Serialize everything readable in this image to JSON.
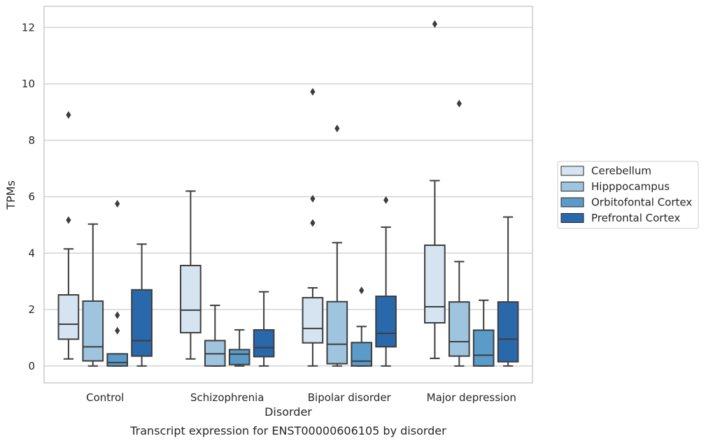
{
  "chart_data": {
    "type": "box",
    "caption": "Transcript expression for ENST00000606105 by disorder",
    "xlabel": "Disorder",
    "ylabel": "TPMs",
    "ylim": [
      -0.6,
      12.75
    ],
    "yticks": [
      0,
      2,
      4,
      6,
      8,
      10,
      12
    ],
    "grid": "horizontal",
    "legend_position": "right",
    "categories": [
      "Control",
      "Schizophrenia",
      "Bipolar disorder",
      "Major depression"
    ],
    "series": [
      {
        "name": "Cerebellum",
        "color": "#d6e4f2",
        "boxes": [
          {
            "whisker_low": 0.25,
            "q1": 0.95,
            "median": 1.48,
            "q3": 2.52,
            "whisker_high": 4.15,
            "outliers": [
              5.17,
              8.9
            ]
          },
          {
            "whisker_low": 0.25,
            "q1": 1.18,
            "median": 1.98,
            "q3": 3.56,
            "whisker_high": 6.2,
            "outliers": []
          },
          {
            "whisker_low": 0.0,
            "q1": 0.82,
            "median": 1.33,
            "q3": 2.42,
            "whisker_high": 2.77,
            "outliers": [
              5.07,
              5.93,
              9.72
            ]
          },
          {
            "whisker_low": 0.27,
            "q1": 1.53,
            "median": 2.1,
            "q3": 4.28,
            "whisker_high": 6.57,
            "outliers": [
              12.12
            ]
          }
        ]
      },
      {
        "name": "Hipppocampus",
        "color": "#9ec4de",
        "boxes": [
          {
            "whisker_low": 0.0,
            "q1": 0.18,
            "median": 0.68,
            "q3": 2.3,
            "whisker_high": 5.03,
            "outliers": []
          },
          {
            "whisker_low": 0.0,
            "q1": 0.0,
            "median": 0.43,
            "q3": 0.9,
            "whisker_high": 2.15,
            "outliers": []
          },
          {
            "whisker_low": 0.0,
            "q1": 0.08,
            "median": 0.77,
            "q3": 2.28,
            "whisker_high": 4.37,
            "outliers": [
              8.42
            ]
          },
          {
            "whisker_low": 0.0,
            "q1": 0.35,
            "median": 0.86,
            "q3": 2.27,
            "whisker_high": 3.7,
            "outliers": [
              9.3
            ]
          }
        ]
      },
      {
        "name": "Orbitofontal Cortex",
        "color": "#5a9bc9",
        "boxes": [
          {
            "whisker_low": 0.0,
            "q1": 0.0,
            "median": 0.12,
            "q3": 0.43,
            "whisker_high": 0.43,
            "outliers": [
              1.25,
              1.8,
              5.75
            ]
          },
          {
            "whisker_low": 0.0,
            "q1": 0.05,
            "median": 0.42,
            "q3": 0.58,
            "whisker_high": 1.28,
            "outliers": []
          },
          {
            "whisker_low": 0.0,
            "q1": 0.0,
            "median": 0.17,
            "q3": 0.83,
            "whisker_high": 1.4,
            "outliers": [
              2.68
            ]
          },
          {
            "whisker_low": 0.0,
            "q1": 0.0,
            "median": 0.38,
            "q3": 1.27,
            "whisker_high": 2.33,
            "outliers": []
          }
        ]
      },
      {
        "name": "Prefrontal Cortex",
        "color": "#2a68ac",
        "boxes": [
          {
            "whisker_low": 0.0,
            "q1": 0.35,
            "median": 0.9,
            "q3": 2.7,
            "whisker_high": 4.32,
            "outliers": []
          },
          {
            "whisker_low": 0.0,
            "q1": 0.33,
            "median": 0.65,
            "q3": 1.28,
            "whisker_high": 2.63,
            "outliers": []
          },
          {
            "whisker_low": 0.0,
            "q1": 0.68,
            "median": 1.16,
            "q3": 2.47,
            "whisker_high": 4.92,
            "outliers": [
              5.88
            ]
          },
          {
            "whisker_low": 0.0,
            "q1": 0.15,
            "median": 0.95,
            "q3": 2.27,
            "whisker_high": 5.28,
            "outliers": []
          }
        ]
      }
    ]
  }
}
